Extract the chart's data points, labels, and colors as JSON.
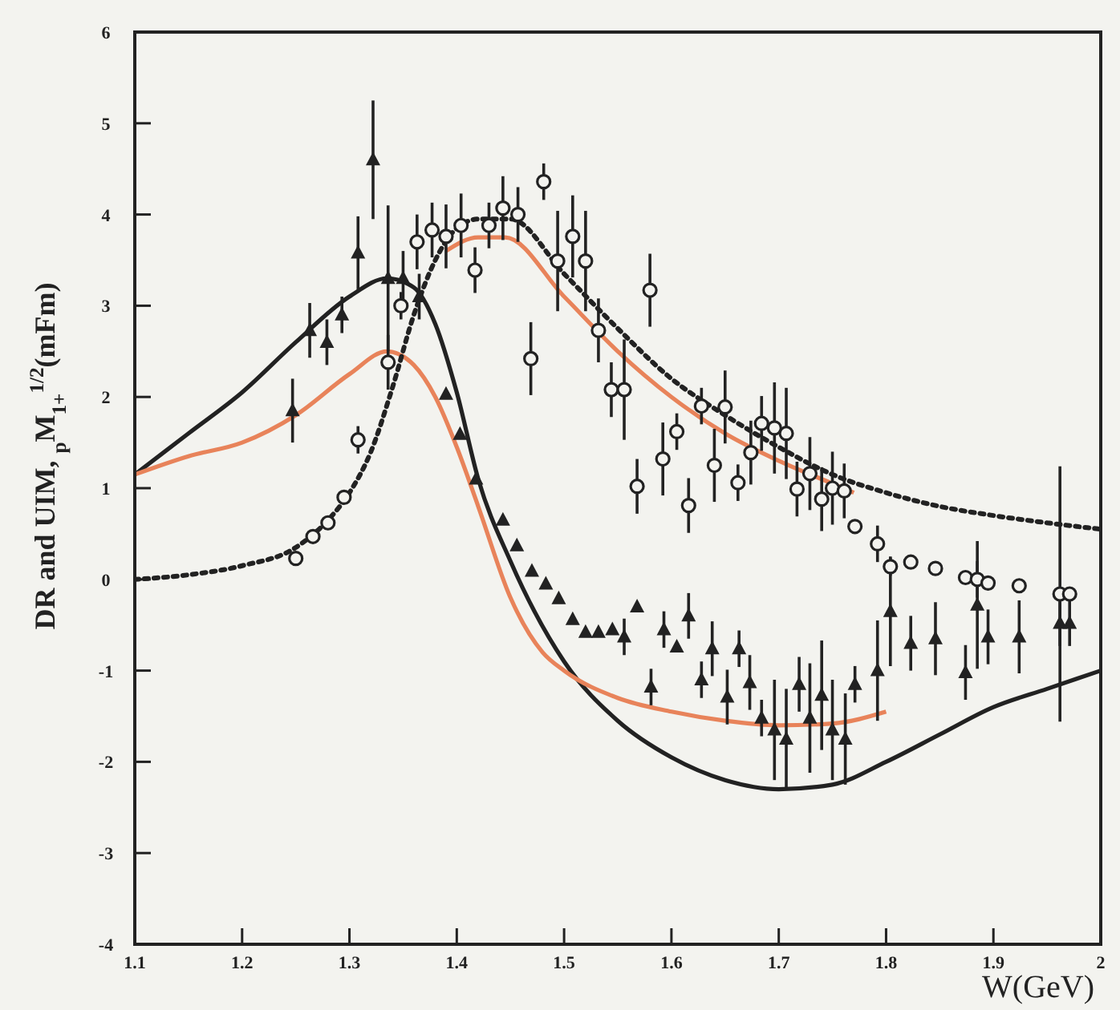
{
  "chart_data": {
    "type": "scatter",
    "xlabel": "W(GeV)",
    "ylabel": "DR and UIM, $_{p}$M$_{1+}$$^{1/2}$(mFm)",
    "xlim": [
      1.1,
      2
    ],
    "ylim": [
      -4,
      6
    ],
    "xticks": [
      1.1,
      1.2,
      1.3,
      1.4,
      1.5,
      1.6,
      1.7,
      1.8,
      1.9,
      2
    ],
    "yticks": [
      -4,
      -3,
      -2,
      -1,
      0,
      1,
      2,
      3,
      4,
      5,
      6
    ],
    "grid": false,
    "series": [
      {
        "type": "line",
        "color": "#222222",
        "marker": "none",
        "line_style": "solid",
        "x": [
          1.1,
          1.15,
          1.2,
          1.25,
          1.3,
          1.335,
          1.36,
          1.38,
          1.4,
          1.42,
          1.45,
          1.5,
          1.55,
          1.6,
          1.65,
          1.7,
          1.75,
          1.8,
          1.85,
          1.9,
          1.95,
          2.0
        ],
        "values": [
          1.15,
          1.6,
          2.05,
          2.6,
          3.1,
          3.3,
          3.2,
          2.8,
          2.05,
          1.1,
          0.2,
          -0.9,
          -1.55,
          -1.95,
          -2.2,
          -2.3,
          -2.25,
          -2.0,
          -1.7,
          -1.4,
          -1.2,
          -1.0
        ]
      },
      {
        "type": "line",
        "color": "#e8835a",
        "marker": "none",
        "line_style": "solid",
        "x": [
          1.1,
          1.15,
          1.2,
          1.25,
          1.3,
          1.335,
          1.36,
          1.38,
          1.4,
          1.42,
          1.45,
          1.48,
          1.5,
          1.55,
          1.6,
          1.65,
          1.7,
          1.75,
          1.8
        ],
        "values": [
          1.15,
          1.35,
          1.5,
          1.8,
          2.25,
          2.5,
          2.35,
          2.0,
          1.45,
          0.8,
          -0.2,
          -0.8,
          -1.0,
          -1.3,
          -1.45,
          -1.55,
          -1.6,
          -1.58,
          -1.45
        ]
      },
      {
        "type": "line",
        "color": "#e8835a",
        "marker": "none",
        "line_style": "solid",
        "x": [
          1.39,
          1.42,
          1.445,
          1.5,
          1.55,
          1.6,
          1.65,
          1.7,
          1.75,
          1.77
        ],
        "values": [
          3.6,
          3.75,
          3.75,
          3.1,
          2.5,
          2.0,
          1.6,
          1.3,
          1.05,
          0.95
        ]
      },
      {
        "type": "line",
        "color": "#222222",
        "marker": "none",
        "line_style": "dotted",
        "x": [
          1.1,
          1.15,
          1.2,
          1.25,
          1.28,
          1.3,
          1.32,
          1.34,
          1.36,
          1.38,
          1.4,
          1.42,
          1.45,
          1.5,
          1.55,
          1.6,
          1.65,
          1.7,
          1.75,
          1.8,
          1.85,
          1.9,
          1.95,
          2.0
        ],
        "values": [
          0,
          0.05,
          0.15,
          0.35,
          0.65,
          0.95,
          1.4,
          2.1,
          2.9,
          3.5,
          3.85,
          3.95,
          3.95,
          3.35,
          2.75,
          2.2,
          1.8,
          1.45,
          1.15,
          0.95,
          0.8,
          0.7,
          0.62,
          0.55
        ]
      },
      {
        "type": "scatter",
        "color": "#222222",
        "marker": "triangle",
        "x": [
          1.247,
          1.263,
          1.279,
          1.293,
          1.308,
          1.322,
          1.336,
          1.35,
          1.365,
          1.39,
          1.403,
          1.418,
          1.443,
          1.456,
          1.47,
          1.483,
          1.495,
          1.508,
          1.52,
          1.532,
          1.545,
          1.556,
          1.568,
          1.581,
          1.593,
          1.605,
          1.616,
          1.628,
          1.638,
          1.652,
          1.663,
          1.673,
          1.684,
          1.696,
          1.707,
          1.719,
          1.729,
          1.74,
          1.75,
          1.762,
          1.771,
          1.792,
          1.804,
          1.823,
          1.846,
          1.874,
          1.885,
          1.895,
          1.924,
          1.962,
          1.971
        ],
        "values": [
          1.85,
          2.73,
          2.6,
          2.9,
          3.58,
          4.6,
          3.3,
          3.3,
          3.1,
          2.03,
          1.59,
          1.1,
          0.65,
          0.37,
          0.09,
          -0.05,
          -0.21,
          -0.44,
          -0.58,
          -0.58,
          -0.55,
          -0.63,
          -0.3,
          -1.18,
          -0.55,
          -0.74,
          -0.4,
          -1.1,
          -0.76,
          -1.29,
          -0.76,
          -1.13,
          -1.52,
          -1.65,
          -1.75,
          -1.15,
          -1.52,
          -1.27,
          -1.65,
          -1.75,
          -1.15,
          -1.0,
          -0.35,
          -0.7,
          -0.65,
          -1.02,
          -0.28,
          -0.63,
          -0.63,
          -0.48,
          -0.48
        ],
        "errors": [
          0.35,
          0.3,
          0.25,
          0.2,
          0.4,
          0.65,
          0.8,
          0.3,
          0.25,
          null,
          null,
          null,
          null,
          null,
          null,
          null,
          null,
          null,
          null,
          null,
          null,
          0.2,
          null,
          0.2,
          0.2,
          null,
          0.25,
          0.2,
          0.3,
          0.3,
          0.2,
          0.3,
          0.2,
          0.55,
          0.55,
          0.3,
          0.6,
          0.6,
          0.55,
          0.5,
          0.2,
          0.55,
          0.6,
          0.3,
          0.4,
          0.3,
          0.7,
          0.3,
          0.4,
          0.25,
          0.25
        ]
      },
      {
        "type": "scatter",
        "color": "#222222",
        "marker": "circle",
        "x": [
          1.25,
          1.266,
          1.28,
          1.295,
          1.308,
          1.336,
          1.348,
          1.363,
          1.377,
          1.39,
          1.404,
          1.417,
          1.43,
          1.443,
          1.457,
          1.469,
          1.481,
          1.494,
          1.508,
          1.52,
          1.532,
          1.544,
          1.556,
          1.568,
          1.58,
          1.592,
          1.605,
          1.616,
          1.628,
          1.64,
          1.65,
          1.662,
          1.674,
          1.684,
          1.696,
          1.707,
          1.717,
          1.729,
          1.74,
          1.75,
          1.761,
          1.771,
          1.792,
          1.804,
          1.823,
          1.846,
          1.874,
          1.885,
          1.895,
          1.924,
          1.962,
          1.971
        ],
        "values": [
          0.23,
          0.47,
          0.62,
          0.9,
          1.53,
          2.38,
          3.0,
          3.7,
          3.83,
          3.76,
          3.88,
          3.39,
          3.88,
          4.07,
          4.0,
          2.42,
          4.36,
          3.49,
          3.76,
          3.49,
          2.73,
          2.08,
          2.08,
          1.02,
          3.17,
          1.32,
          1.62,
          0.81,
          1.9,
          1.25,
          1.89,
          1.06,
          1.39,
          1.71,
          1.66,
          1.6,
          0.99,
          1.16,
          0.88,
          1.0,
          0.97,
          0.58,
          0.39,
          0.14,
          0.19,
          0.12,
          0.02,
          0.0,
          -0.04,
          -0.07,
          -0.16,
          -0.16
        ],
        "errors": [
          null,
          null,
          null,
          null,
          0.15,
          0.3,
          0.15,
          0.3,
          0.3,
          0.35,
          0.35,
          0.25,
          0.25,
          0.35,
          0.3,
          0.4,
          0.2,
          0.55,
          0.45,
          0.55,
          0.35,
          0.3,
          0.55,
          0.3,
          0.4,
          0.4,
          0.2,
          0.3,
          0.2,
          0.4,
          0.4,
          0.2,
          0.35,
          0.3,
          0.5,
          0.5,
          0.3,
          0.4,
          0.35,
          0.4,
          0.3,
          null,
          0.2,
          0.1,
          null,
          null,
          null,
          0.2,
          null,
          null,
          1.4,
          null
        ]
      }
    ]
  }
}
